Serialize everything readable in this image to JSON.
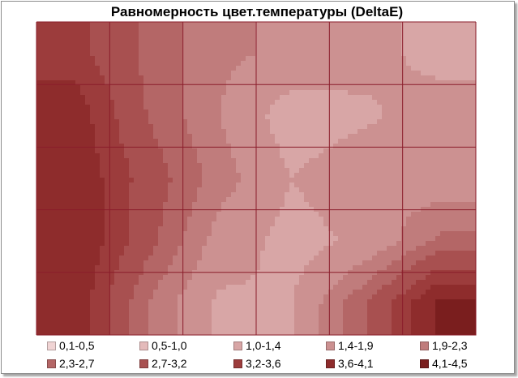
{
  "chart_data": {
    "type": "heatmap",
    "title": "Равномерность цвет.температуры (DeltaE)",
    "xlabel": "",
    "ylabel": "",
    "grid": true,
    "legend_position": "bottom",
    "rows": 5,
    "cols": 6,
    "values": [
      [
        3.4,
        2.6,
        2.0,
        1.8,
        1.6,
        1.2
      ],
      [
        3.9,
        2.7,
        1.9,
        1.1,
        1.3,
        1.7
      ],
      [
        4.0,
        3.0,
        2.1,
        1.4,
        1.8,
        1.6
      ],
      [
        4.1,
        2.9,
        1.7,
        1.2,
        1.5,
        2.4
      ],
      [
        4.0,
        2.3,
        1.3,
        1.4,
        2.7,
        4.2
      ]
    ],
    "legend": [
      {
        "label": "0,1-0,5",
        "color": "#f0d4d4"
      },
      {
        "label": "0,5-1,0",
        "color": "#e4baba"
      },
      {
        "label": "1,0-1,4",
        "color": "#d8a6a6"
      },
      {
        "label": "1,4-1,9",
        "color": "#cc9191"
      },
      {
        "label": "1,9-2,3",
        "color": "#c07c7c"
      },
      {
        "label": "2,3-2,7",
        "color": "#b46666"
      },
      {
        "label": "2,7-3,2",
        "color": "#a85050"
      },
      {
        "label": "3,2-3,6",
        "color": "#9c3c3c"
      },
      {
        "label": "3,6-4,1",
        "color": "#8e2c2c"
      },
      {
        "label": "4,1-4,5",
        "color": "#7a1e1e"
      }
    ]
  }
}
